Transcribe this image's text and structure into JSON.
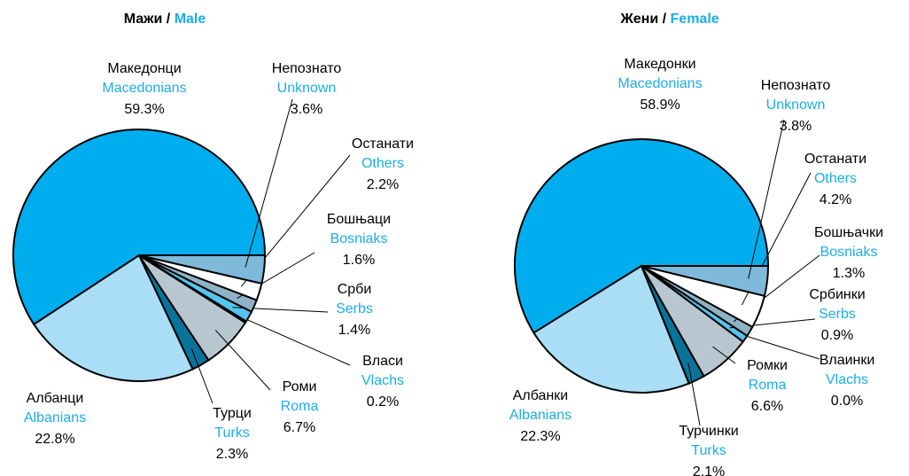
{
  "chart_data": [
    {
      "type": "pie",
      "title": "Мажи",
      "separator": "/",
      "title_en": "Male",
      "categories": [
        "Македонци",
        "Албанци",
        "Турци",
        "Роми",
        "Власи",
        "Срби",
        "Бошњаци",
        "Останати",
        "Непознато"
      ],
      "categories_en": [
        "Macedonians",
        "Albanians",
        "Turks",
        "Roma",
        "Vlachs",
        "Serbs",
        "Bosniaks",
        "Others",
        "Unknown"
      ],
      "values": [
        59.3,
        22.8,
        2.3,
        6.7,
        0.2,
        1.4,
        1.6,
        2.2,
        3.6
      ],
      "value_labels": [
        "59.3%",
        "22.8%",
        "2.3%",
        "6.7%",
        "0.2%",
        "1.4%",
        "1.6%",
        "2.2%",
        "3.6%"
      ],
      "colors": [
        "#00AEEF",
        "#A9DEF6",
        "#0A7399",
        "#B8C7CF",
        "#4E7F95",
        "#55C4EE",
        "#8FB3C6",
        "#FFFFFF",
        "#7FB9DA"
      ]
    },
    {
      "type": "pie",
      "title": "Жени",
      "separator": "/",
      "title_en": "Female",
      "categories": [
        "Македонки",
        "Албанки",
        "Турчинки",
        "Ромки",
        "Влаинки",
        "Србинки",
        "Бошњачки",
        "Останати",
        "Непознато"
      ],
      "categories_en": [
        "Macedonians",
        "Albanians",
        "Turks",
        "Roma",
        "Vlachs",
        "Serbs",
        "Bosniaks",
        "Others",
        "Unknown"
      ],
      "values": [
        58.9,
        22.3,
        2.1,
        6.6,
        0.0,
        0.9,
        1.3,
        4.2,
        3.8
      ],
      "value_labels": [
        "58.9%",
        "22.3%",
        "2.1%",
        "6.6%",
        "0.0%",
        "0.9%",
        "1.3%",
        "4.2%",
        "3.8%"
      ],
      "colors": [
        "#00AEEF",
        "#A9DEF6",
        "#0A7399",
        "#B8C7CF",
        "#4E7F95",
        "#55C4EE",
        "#8FB3C6",
        "#FFFFFF",
        "#7FB9DA"
      ]
    }
  ]
}
